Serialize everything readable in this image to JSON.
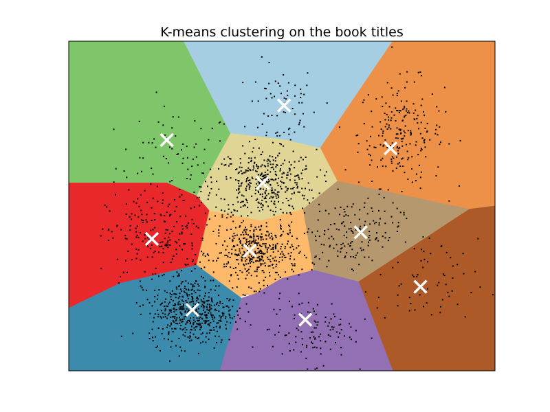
{
  "chart_data": {
    "type": "scatter",
    "title": "K-means clustering on the book titles",
    "xlabel": "",
    "ylabel": "",
    "xlim": [
      0,
      1
    ],
    "ylim": [
      0,
      1
    ],
    "axis_ticks": "none",
    "grid": false,
    "legend": "none",
    "regions": [
      {
        "cluster": 1,
        "color": "#7fc66a",
        "vertices": [
          [
            0.0,
            1.0
          ],
          [
            0.27,
            1.0
          ],
          [
            0.38,
            0.72
          ],
          [
            0.3,
            0.53
          ],
          [
            0.23,
            0.57
          ],
          [
            0.0,
            0.57
          ]
        ]
      },
      {
        "cluster": 2,
        "color": "#a6cee3",
        "vertices": [
          [
            0.27,
            1.0
          ],
          [
            0.76,
            1.0
          ],
          [
            0.59,
            0.675
          ],
          [
            0.51,
            0.7
          ],
          [
            0.38,
            0.72
          ]
        ]
      },
      {
        "cluster": 3,
        "color": "#ed9148",
        "vertices": [
          [
            0.76,
            1.0
          ],
          [
            1.0,
            1.0
          ],
          [
            1.0,
            0.5
          ],
          [
            0.94,
            0.49
          ],
          [
            0.63,
            0.575
          ],
          [
            0.59,
            0.675
          ]
        ]
      },
      {
        "cluster": 4,
        "color": "#e0d594",
        "vertices": [
          [
            0.38,
            0.72
          ],
          [
            0.51,
            0.7
          ],
          [
            0.59,
            0.675
          ],
          [
            0.63,
            0.575
          ],
          [
            0.55,
            0.49
          ],
          [
            0.45,
            0.455
          ],
          [
            0.33,
            0.485
          ],
          [
            0.3,
            0.53
          ]
        ]
      },
      {
        "cluster": 5,
        "color": "#e8282b",
        "vertices": [
          [
            0.0,
            0.57
          ],
          [
            0.23,
            0.57
          ],
          [
            0.3,
            0.53
          ],
          [
            0.33,
            0.485
          ],
          [
            0.3,
            0.32
          ],
          [
            0.12,
            0.265
          ],
          [
            0.0,
            0.19
          ]
        ]
      },
      {
        "cluster": 6,
        "color": "#feb96a",
        "vertices": [
          [
            0.33,
            0.485
          ],
          [
            0.45,
            0.455
          ],
          [
            0.55,
            0.49
          ],
          [
            0.575,
            0.305
          ],
          [
            0.5,
            0.28
          ],
          [
            0.44,
            0.235
          ],
          [
            0.4,
            0.225
          ],
          [
            0.3,
            0.32
          ]
        ]
      },
      {
        "cluster": 7,
        "color": "#b5986e",
        "vertices": [
          [
            0.55,
            0.49
          ],
          [
            0.63,
            0.575
          ],
          [
            0.94,
            0.49
          ],
          [
            0.68,
            0.27
          ],
          [
            0.575,
            0.305
          ]
        ]
      },
      {
        "cluster": 8,
        "color": "#ae5928",
        "vertices": [
          [
            0.94,
            0.49
          ],
          [
            1.0,
            0.5
          ],
          [
            1.0,
            0.0
          ],
          [
            0.76,
            0.0
          ],
          [
            0.68,
            0.27
          ]
        ]
      },
      {
        "cluster": 9,
        "color": "#3d8bac",
        "vertices": [
          [
            0.0,
            0.19
          ],
          [
            0.12,
            0.265
          ],
          [
            0.3,
            0.32
          ],
          [
            0.4,
            0.225
          ],
          [
            0.4,
            0.225
          ],
          [
            0.405,
            0.22
          ],
          [
            0.355,
            0.0
          ],
          [
            0.0,
            0.0
          ]
        ]
      },
      {
        "cluster": 10,
        "color": "#9270b3",
        "vertices": [
          [
            0.405,
            0.22
          ],
          [
            0.44,
            0.235
          ],
          [
            0.5,
            0.28
          ],
          [
            0.575,
            0.305
          ],
          [
            0.68,
            0.27
          ],
          [
            0.76,
            0.0
          ],
          [
            0.355,
            0.0
          ]
        ]
      }
    ],
    "centroids": [
      {
        "cluster": 1,
        "x": 0.23,
        "y": 0.7
      },
      {
        "cluster": 2,
        "x": 0.505,
        "y": 0.805
      },
      {
        "cluster": 3,
        "x": 0.755,
        "y": 0.675
      },
      {
        "cluster": 4,
        "x": 0.455,
        "y": 0.57
      },
      {
        "cluster": 5,
        "x": 0.195,
        "y": 0.4
      },
      {
        "cluster": 6,
        "x": 0.425,
        "y": 0.365
      },
      {
        "cluster": 7,
        "x": 0.685,
        "y": 0.42
      },
      {
        "cluster": 8,
        "x": 0.825,
        "y": 0.255
      },
      {
        "cluster": 9,
        "x": 0.29,
        "y": 0.185
      },
      {
        "cluster": 10,
        "x": 0.555,
        "y": 0.155
      }
    ],
    "point_clusters": [
      {
        "cluster": 1,
        "cx": 0.25,
        "cy": 0.62,
        "sx": 0.07,
        "sy": 0.09,
        "n": 90
      },
      {
        "cluster": 2,
        "cx": 0.5,
        "cy": 0.8,
        "sx": 0.04,
        "sy": 0.07,
        "n": 70
      },
      {
        "cluster": 3,
        "cx": 0.78,
        "cy": 0.72,
        "sx": 0.05,
        "sy": 0.08,
        "n": 220
      },
      {
        "cluster": 4,
        "cx": 0.46,
        "cy": 0.57,
        "sx": 0.06,
        "sy": 0.05,
        "n": 380
      },
      {
        "cluster": 5,
        "cx": 0.21,
        "cy": 0.4,
        "sx": 0.06,
        "sy": 0.07,
        "n": 200
      },
      {
        "cluster": 6,
        "cx": 0.44,
        "cy": 0.36,
        "sx": 0.05,
        "sy": 0.05,
        "n": 420
      },
      {
        "cluster": 7,
        "cx": 0.66,
        "cy": 0.42,
        "sx": 0.06,
        "sy": 0.05,
        "n": 160
      },
      {
        "cluster": 8,
        "cx": 0.84,
        "cy": 0.26,
        "sx": 0.06,
        "sy": 0.07,
        "n": 60
      },
      {
        "cluster": 9,
        "cx": 0.29,
        "cy": 0.18,
        "sx": 0.05,
        "sy": 0.05,
        "n": 480
      },
      {
        "cluster": 10,
        "cx": 0.57,
        "cy": 0.12,
        "sx": 0.05,
        "sy": 0.05,
        "n": 110
      }
    ],
    "styles": {
      "point_color": "#000000",
      "centroid_color": "#ffffff",
      "frame_color": "#000000"
    }
  }
}
